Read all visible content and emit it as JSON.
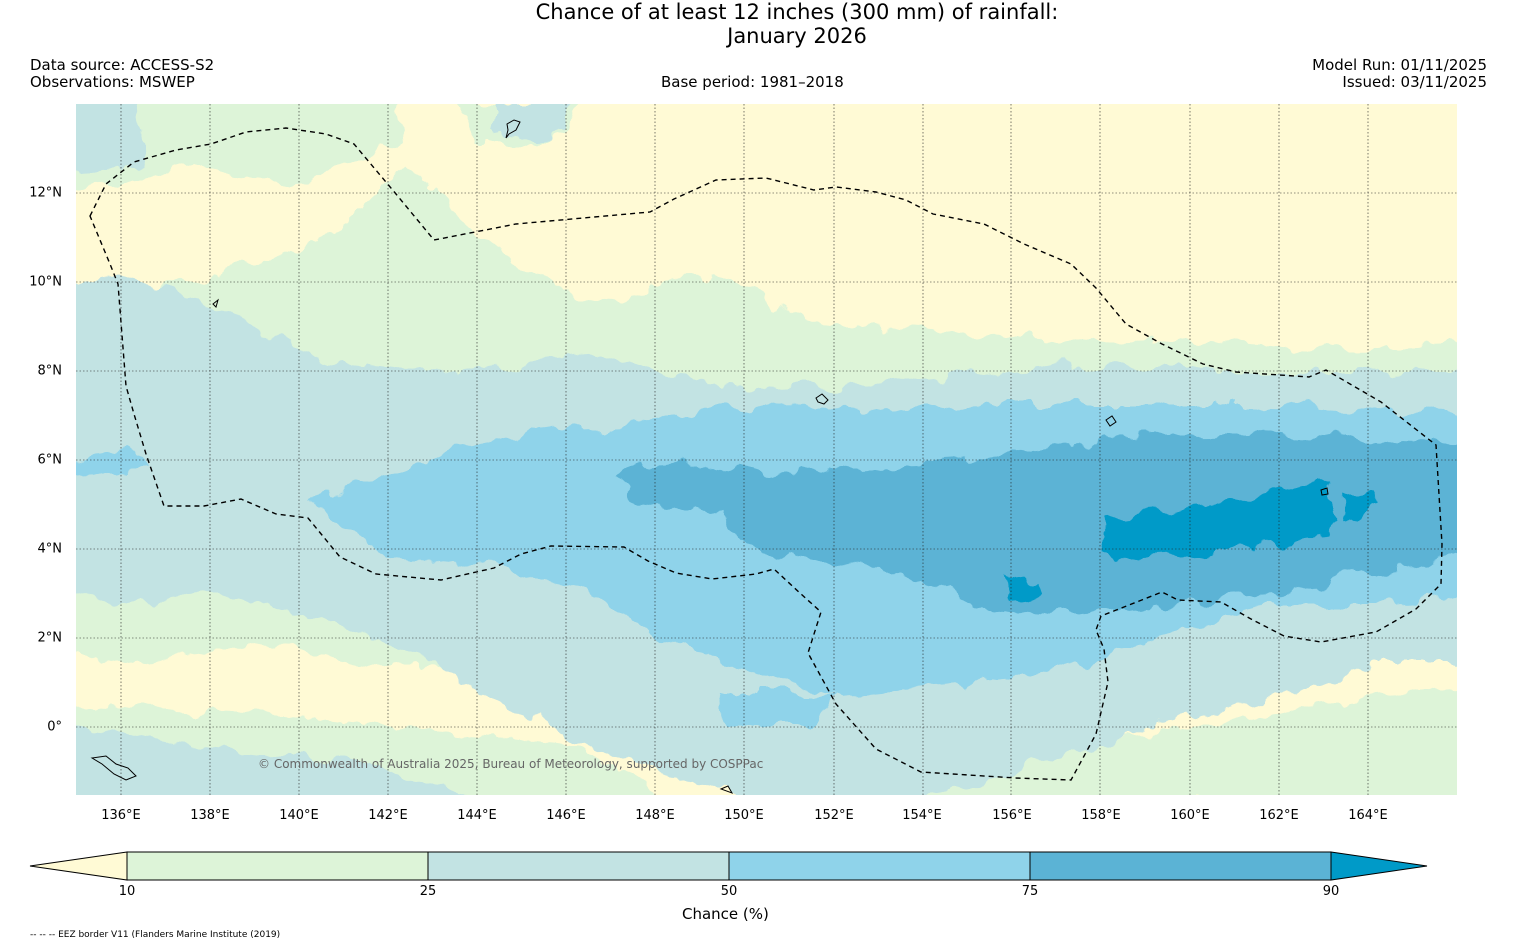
{
  "header": {
    "title_line1": "Chance of at least 12 inches (300  mm) of rainfall:",
    "title_line2": "January 2026",
    "data_source": "Data source: ACCESS-S2",
    "observations": "Observations: MSWEP",
    "base_period": "Base period: 1981–2018",
    "model_run": "Model Run: 01/11/2025",
    "issued": "Issued: 03/11/2025"
  },
  "map": {
    "copyright": "© Commonwealth of Australia 2025, Bureau of Meteorology, supported by COSPPac",
    "longitude_labels": [
      "136°E",
      "138°E",
      "140°E",
      "142°E",
      "144°E",
      "146°E",
      "148°E",
      "150°E",
      "152°E",
      "154°E",
      "156°E",
      "158°E",
      "160°E",
      "162°E",
      "164°E"
    ],
    "latitude_labels": [
      "12°N",
      "10°N",
      "8°N",
      "6°N",
      "4°N",
      "2°N",
      "0°"
    ],
    "lon_range": [
      135,
      166
    ],
    "lat_range": [
      -1.5,
      14
    ],
    "layer": "EEZ border"
  },
  "legend": {
    "label": "Chance (%)",
    "ticks": [
      "10",
      "25",
      "50",
      "75",
      "90"
    ],
    "colors": [
      "#fffad5",
      "#ddf4d8",
      "#c2e3e3",
      "#8fd3ea",
      "#5bb3d5",
      "#009ac8"
    ]
  },
  "footnote": "-- -- -- EEZ border V11 (Flanders Marine Institute (2019)"
}
